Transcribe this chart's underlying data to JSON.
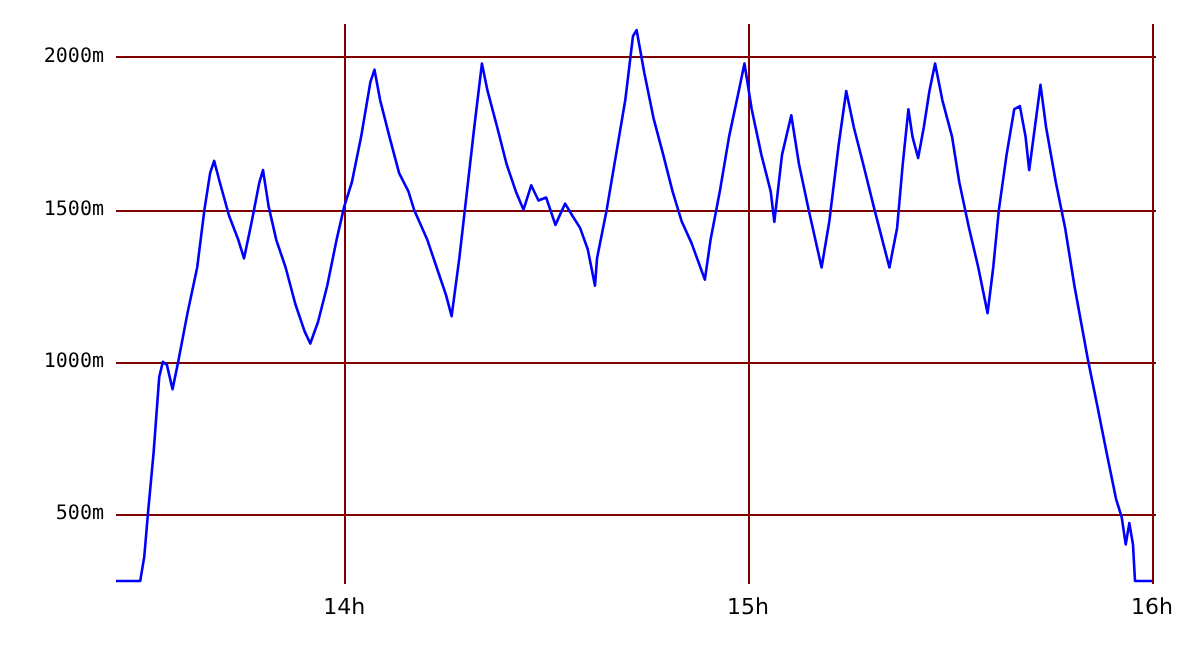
{
  "chart_data": {
    "type": "line",
    "xlim": [
      13.435,
      16.01
    ],
    "ylim": [
      270,
      2110
    ],
    "xticks": [
      {
        "value": 14,
        "label": "14h"
      },
      {
        "value": 15,
        "label": "15h"
      },
      {
        "value": 16,
        "label": "16h"
      }
    ],
    "yticks": [
      {
        "value": 500,
        "label": "500m"
      },
      {
        "value": 1000,
        "label": "1000m"
      },
      {
        "value": 1500,
        "label": "1500m"
      },
      {
        "value": 2000,
        "label": "2000m"
      }
    ],
    "grid": true,
    "marker": "none",
    "line_style": "solid",
    "x": [
      13.435,
      13.495,
      13.505,
      13.514,
      13.528,
      13.542,
      13.551,
      13.561,
      13.575,
      13.589,
      13.612,
      13.636,
      13.654,
      13.668,
      13.678,
      13.692,
      13.715,
      13.738,
      13.752,
      13.771,
      13.79,
      13.799,
      13.813,
      13.832,
      13.855,
      13.879,
      13.902,
      13.916,
      13.935,
      13.958,
      13.981,
      14.0,
      14.019,
      14.042,
      14.065,
      14.075,
      14.089,
      14.112,
      14.136,
      14.159,
      14.173,
      14.206,
      14.229,
      14.252,
      14.266,
      14.285,
      14.304,
      14.322,
      14.341,
      14.355,
      14.379,
      14.402,
      14.425,
      14.444,
      14.463,
      14.481,
      14.5,
      14.523,
      14.547,
      14.565,
      14.584,
      14.603,
      14.621,
      14.626,
      14.65,
      14.673,
      14.696,
      14.715,
      14.724,
      14.743,
      14.766,
      14.79,
      14.813,
      14.836,
      14.86,
      14.893,
      14.907,
      14.93,
      14.953,
      14.977,
      14.991,
      15.009,
      15.033,
      15.056,
      15.065,
      15.084,
      15.107,
      15.126,
      15.15,
      15.182,
      15.201,
      15.224,
      15.243,
      15.262,
      15.285,
      15.313,
      15.35,
      15.369,
      15.383,
      15.397,
      15.407,
      15.421,
      15.435,
      15.449,
      15.463,
      15.481,
      15.505,
      15.523,
      15.547,
      15.57,
      15.593,
      15.607,
      15.621,
      15.64,
      15.659,
      15.673,
      15.687,
      15.696,
      15.71,
      15.724,
      15.738,
      15.762,
      15.785,
      15.808,
      15.841,
      15.864,
      15.888,
      15.911,
      15.925,
      15.935,
      15.944,
      15.953,
      15.958,
      16.0
    ],
    "series": [
      {
        "color": "#0000ff",
        "values": [
          280,
          280,
          360,
          500,
          700,
          950,
          1000,
          990,
          910,
          1000,
          1160,
          1310,
          1500,
          1620,
          1660,
          1590,
          1480,
          1400,
          1340,
          1460,
          1590,
          1630,
          1510,
          1400,
          1310,
          1190,
          1100,
          1060,
          1130,
          1250,
          1400,
          1510,
          1590,
          1740,
          1920,
          1960,
          1860,
          1740,
          1620,
          1560,
          1500,
          1400,
          1310,
          1220,
          1150,
          1340,
          1560,
          1770,
          1980,
          1890,
          1770,
          1650,
          1560,
          1500,
          1580,
          1530,
          1540,
          1450,
          1520,
          1480,
          1440,
          1370,
          1250,
          1340,
          1500,
          1680,
          1860,
          2070,
          2090,
          1950,
          1800,
          1680,
          1560,
          1460,
          1390,
          1270,
          1400,
          1560,
          1740,
          1890,
          1980,
          1830,
          1680,
          1560,
          1460,
          1680,
          1810,
          1650,
          1500,
          1310,
          1460,
          1710,
          1890,
          1770,
          1650,
          1500,
          1310,
          1440,
          1650,
          1830,
          1740,
          1670,
          1770,
          1890,
          1980,
          1860,
          1740,
          1590,
          1440,
          1310,
          1160,
          1310,
          1500,
          1680,
          1830,
          1840,
          1740,
          1630,
          1770,
          1910,
          1770,
          1590,
          1440,
          1250,
          1010,
          860,
          700,
          550,
          490,
          400,
          470,
          400,
          280,
          280
        ]
      }
    ]
  }
}
